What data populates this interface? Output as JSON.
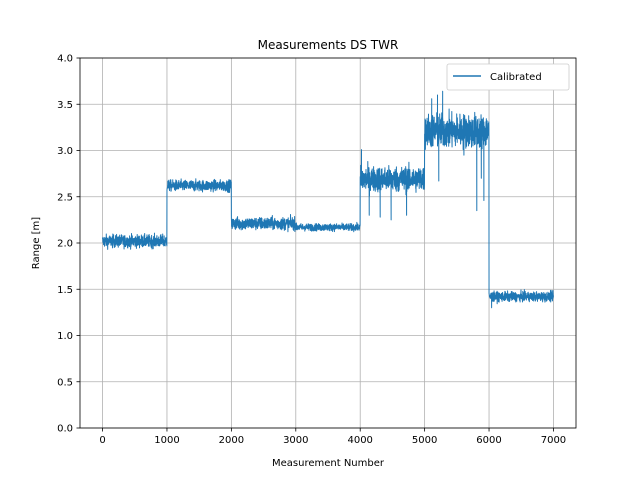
{
  "chart_data": {
    "type": "line",
    "title": "Measurements DS TWR",
    "xlabel": "Measurement Number",
    "ylabel": "Range [m]",
    "xlim": [
      -350,
      7350
    ],
    "ylim": [
      0.0,
      4.0
    ],
    "xticks": [
      0,
      1000,
      2000,
      3000,
      4000,
      5000,
      6000,
      7000
    ],
    "xtick_labels": [
      "0",
      "1000",
      "2000",
      "3000",
      "4000",
      "5000",
      "6000",
      "7000"
    ],
    "yticks": [
      0.0,
      0.5,
      1.0,
      1.5,
      2.0,
      2.5,
      3.0,
      3.5,
      4.0
    ],
    "ytick_labels": [
      "0.0",
      "0.5",
      "1.0",
      "1.5",
      "2.0",
      "2.5",
      "3.0",
      "3.5",
      "4.0"
    ],
    "grid": true,
    "legend_position": "top-right",
    "series": [
      {
        "name": "Calibrated",
        "color": "#1f77b4",
        "segments": [
          {
            "x_start": 0,
            "x_end": 1000,
            "mean": 2.02,
            "min": 1.85,
            "max": 2.18
          },
          {
            "x_start": 1000,
            "x_end": 2000,
            "mean": 2.62,
            "min": 2.48,
            "max": 2.76
          },
          {
            "x_start": 2000,
            "x_end": 3000,
            "mean": 2.21,
            "min": 2.05,
            "max": 2.37
          },
          {
            "x_start": 3000,
            "x_end": 4000,
            "mean": 2.17,
            "min": 2.08,
            "max": 2.28
          },
          {
            "x_start": 4000,
            "x_end": 5000,
            "mean": 2.69,
            "min": 2.25,
            "max": 3.01
          },
          {
            "x_start": 5000,
            "x_end": 6000,
            "mean": 3.21,
            "min": 2.35,
            "max": 3.64
          },
          {
            "x_start": 6000,
            "x_end": 7000,
            "mean": 1.42,
            "min": 1.25,
            "max": 1.54
          }
        ],
        "spikes": [
          {
            "x": 4020,
            "y": 3.01
          },
          {
            "x": 4140,
            "y": 2.3
          },
          {
            "x": 4310,
            "y": 2.28
          },
          {
            "x": 4480,
            "y": 2.25
          },
          {
            "x": 4720,
            "y": 2.3
          },
          {
            "x": 5110,
            "y": 3.56
          },
          {
            "x": 5200,
            "y": 3.6
          },
          {
            "x": 5220,
            "y": 2.67
          },
          {
            "x": 5280,
            "y": 3.64
          },
          {
            "x": 5610,
            "y": 2.95
          },
          {
            "x": 5750,
            "y": 3.05
          },
          {
            "x": 5810,
            "y": 2.35
          },
          {
            "x": 5880,
            "y": 2.7
          },
          {
            "x": 5920,
            "y": 2.46
          },
          {
            "x": 6040,
            "y": 1.3
          }
        ]
      }
    ]
  }
}
